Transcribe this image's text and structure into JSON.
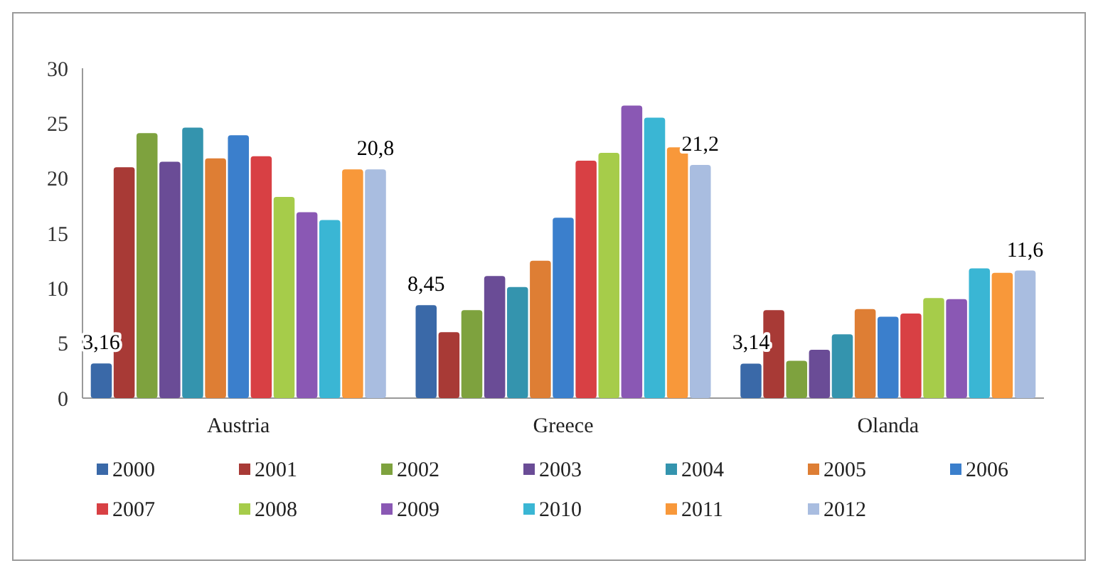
{
  "chart_data": {
    "type": "bar",
    "categories": [
      "Austria",
      "Greece",
      "Olanda"
    ],
    "series": [
      {
        "name": "2000",
        "color": "#3a69a8",
        "values": [
          3.16,
          8.45,
          3.14
        ],
        "value_labels": [
          "3,16",
          "8,45",
          "3,14"
        ]
      },
      {
        "name": "2001",
        "color": "#a83a36",
        "values": [
          21,
          6,
          8
        ]
      },
      {
        "name": "2002",
        "color": "#7ea23e",
        "values": [
          24.1,
          8,
          3.4
        ]
      },
      {
        "name": "2003",
        "color": "#6a4c96",
        "values": [
          21.5,
          11.1,
          4.4
        ]
      },
      {
        "name": "2004",
        "color": "#3494ae",
        "values": [
          24.6,
          10.1,
          5.8
        ]
      },
      {
        "name": "2005",
        "color": "#de7e34",
        "values": [
          21.8,
          12.5,
          8.1
        ]
      },
      {
        "name": "2006",
        "color": "#3b7fcc",
        "values": [
          23.9,
          16.4,
          7.4
        ]
      },
      {
        "name": "2007",
        "color": "#d84044",
        "values": [
          22,
          21.6,
          7.7
        ]
      },
      {
        "name": "2008",
        "color": "#a6cc4a",
        "values": [
          18.3,
          22.3,
          9.1
        ]
      },
      {
        "name": "2009",
        "color": "#8a58b4",
        "values": [
          16.9,
          26.6,
          9
        ]
      },
      {
        "name": "2010",
        "color": "#3ab6d4",
        "values": [
          16.2,
          25.5,
          11.8
        ]
      },
      {
        "name": "2011",
        "color": "#f8983a",
        "values": [
          20.8,
          22.8,
          11.4
        ]
      },
      {
        "name": "2012",
        "color": "#a9bde0",
        "values": [
          20.8,
          21.2,
          11.6
        ],
        "value_labels": [
          "20,8",
          "21,2",
          "11,6"
        ]
      }
    ],
    "ylim": [
      0,
      30
    ],
    "yticks": [
      0,
      5,
      10,
      15,
      20,
      25,
      30
    ],
    "grid": false,
    "legend": "bottom"
  }
}
